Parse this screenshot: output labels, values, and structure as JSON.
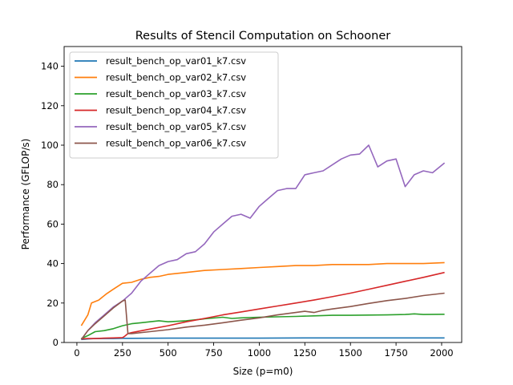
{
  "chart_data": {
    "type": "line",
    "title": "Results of Stencil Computation on Schooner",
    "xlabel": "Size (p=m0)",
    "ylabel": "Performance (GFLOP/s)",
    "xlim": [
      -70,
      2110
    ],
    "ylim": [
      0,
      150
    ],
    "xticks": [
      0,
      250,
      500,
      750,
      1000,
      1250,
      1500,
      1750,
      2000
    ],
    "yticks": [
      0,
      20,
      40,
      60,
      80,
      100,
      120,
      140
    ],
    "grid": false,
    "legend_position": "top-left",
    "series": [
      {
        "name": "result_bench_op_var01_k7.csv",
        "color": "#1f77b4",
        "x": [
          24,
          60,
          100,
          150,
          200,
          250,
          300,
          500,
          750,
          1000,
          1250,
          1500,
          1750,
          2000,
          2016
        ],
        "values": [
          1.5,
          1.8,
          2.0,
          2.0,
          2.0,
          2.1,
          2.1,
          2.2,
          2.2,
          2.2,
          2.3,
          2.3,
          2.3,
          2.3,
          2.3
        ]
      },
      {
        "name": "result_bench_op_var02_k7.csv",
        "color": "#ff7f0e",
        "x": [
          24,
          60,
          80,
          120,
          160,
          200,
          250,
          300,
          350,
          400,
          450,
          500,
          600,
          700,
          800,
          900,
          1000,
          1100,
          1200,
          1300,
          1400,
          1500,
          1600,
          1700,
          1800,
          1900,
          2016
        ],
        "values": [
          8.5,
          14,
          20,
          21.5,
          24.5,
          27,
          30,
          30.5,
          32,
          33,
          33.5,
          34.5,
          35.5,
          36.5,
          37,
          37.5,
          38,
          38.5,
          39,
          39,
          39.5,
          39.5,
          39.5,
          40,
          40,
          40,
          40.5
        ]
      },
      {
        "name": "result_bench_op_var03_k7.csv",
        "color": "#2ca02c",
        "x": [
          24,
          60,
          100,
          150,
          200,
          250,
          300,
          350,
          400,
          450,
          500,
          600,
          700,
          800,
          850,
          900,
          1000,
          1100,
          1200,
          1300,
          1400,
          1500,
          1600,
          1700,
          1800,
          1850,
          1900,
          2016
        ],
        "values": [
          2,
          3.5,
          5.5,
          6,
          7,
          8.5,
          9.5,
          10,
          10.5,
          11,
          10.5,
          11,
          12,
          12.8,
          12.2,
          12.5,
          12.8,
          13,
          13.2,
          13.5,
          13.8,
          13.8,
          13.9,
          14,
          14.2,
          14.5,
          14.2,
          14.3
        ]
      },
      {
        "name": "result_bench_op_var04_k7.csv",
        "color": "#d62728",
        "x": [
          24,
          60,
          100,
          150,
          200,
          250,
          260,
          280,
          300,
          400,
          500,
          600,
          700,
          800,
          900,
          1000,
          1100,
          1200,
          1300,
          1400,
          1500,
          1600,
          1700,
          1800,
          1900,
          2016
        ],
        "values": [
          1.8,
          2,
          2,
          2.2,
          2.3,
          2.5,
          3,
          4.5,
          5,
          6.8,
          8.5,
          10.5,
          12.2,
          14,
          15.5,
          17,
          18.5,
          20,
          21.5,
          23.2,
          25,
          27,
          29,
          31,
          33,
          35.5
        ]
      },
      {
        "name": "result_bench_op_var05_k7.csv",
        "color": "#9467bd",
        "x": [
          24,
          60,
          100,
          150,
          200,
          250,
          300,
          350,
          400,
          450,
          500,
          550,
          600,
          650,
          700,
          750,
          800,
          850,
          900,
          950,
          1000,
          1050,
          1100,
          1150,
          1200,
          1250,
          1300,
          1350,
          1400,
          1450,
          1500,
          1550,
          1600,
          1650,
          1700,
          1750,
          1800,
          1850,
          1900,
          1950,
          2016
        ],
        "values": [
          1.5,
          6,
          10,
          14,
          18,
          21,
          25,
          31,
          35,
          39,
          41,
          42,
          45,
          46,
          50,
          56,
          60,
          64,
          65,
          63,
          69,
          73,
          77,
          78,
          78,
          85,
          86,
          87,
          90,
          93,
          95,
          95.5,
          100,
          89,
          92,
          93,
          79,
          85,
          87,
          86,
          91
        ]
      },
      {
        "name": "result_bench_op_var06_k7.csv",
        "color": "#8c564b",
        "x": [
          24,
          60,
          100,
          150,
          200,
          250,
          265,
          280,
          300,
          400,
          500,
          600,
          700,
          800,
          900,
          1000,
          1100,
          1200,
          1250,
          1300,
          1350,
          1400,
          1500,
          1600,
          1700,
          1800,
          1900,
          2016
        ],
        "values": [
          1.5,
          6,
          9.5,
          13.5,
          17.5,
          21,
          21.5,
          4.5,
          4.5,
          5.5,
          6.5,
          7.8,
          8.8,
          10,
          11.3,
          12.5,
          14,
          15.2,
          15.8,
          15.2,
          16.3,
          17,
          18.2,
          19.8,
          21.2,
          22.3,
          23.8,
          25
        ]
      }
    ]
  }
}
